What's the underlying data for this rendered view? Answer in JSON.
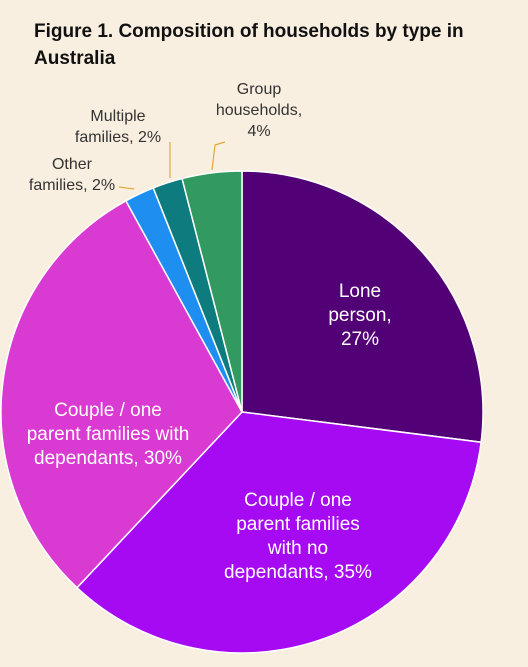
{
  "chart_data": {
    "type": "pie",
    "title": "Figure 1. Composition of households by type in Australia",
    "slices": [
      {
        "name": "Lone person",
        "value": 27,
        "color": "#520075",
        "label_lines": [
          "Lone",
          "person,",
          "27%"
        ],
        "label_color": "#ffffff",
        "label_inside": true
      },
      {
        "name": "Couple / one parent families with no dependants",
        "value": 35,
        "color": "#a60af3",
        "label_lines": [
          "Couple / one",
          "parent families",
          "with no",
          "dependants, 35%"
        ],
        "label_color": "#ffffff",
        "label_inside": true
      },
      {
        "name": "Couple / one parent families with dependants",
        "value": 30,
        "color": "#d93ad2",
        "label_lines": [
          "Couple / one",
          "parent families with",
          "dependants, 30%"
        ],
        "label_color": "#ffffff",
        "label_inside": true
      },
      {
        "name": "Other families",
        "value": 2,
        "color": "#1e8ff0",
        "label_lines": [
          "Other",
          "families, 2%"
        ],
        "label_color": "#333333",
        "label_inside": false
      },
      {
        "name": "Multiple families",
        "value": 2,
        "color": "#0e7b7e",
        "label_lines": [
          "Multiple",
          "families, 2%"
        ],
        "label_color": "#333333",
        "label_inside": false
      },
      {
        "name": "Group households",
        "value": 4,
        "color": "#329a60",
        "label_lines": [
          "Group",
          "households,",
          "4%"
        ],
        "label_color": "#333333",
        "label_inside": false
      }
    ],
    "leader_color": "#e0a93a"
  }
}
